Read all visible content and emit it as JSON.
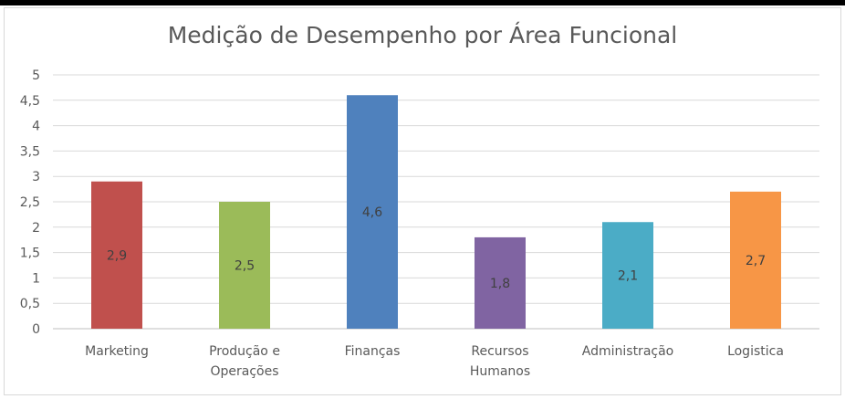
{
  "chart_data": {
    "type": "bar",
    "title": "Medição de Desempenho por Área Funcional",
    "categories": [
      [
        "Marketing"
      ],
      [
        "Produção e",
        "Operações"
      ],
      [
        "Finanças"
      ],
      [
        "Recursos",
        "Humanos"
      ],
      [
        "Administração"
      ],
      [
        "Logistica"
      ]
    ],
    "values": [
      2.9,
      2.5,
      4.6,
      1.8,
      2.1,
      2.7
    ],
    "data_labels": [
      "2,9",
      "2,5",
      "4,6",
      "1,8",
      "2,1",
      "2,7"
    ],
    "colors": [
      "#c0504d",
      "#9bbb59",
      "#4f81bd",
      "#8064a2",
      "#4bacc6",
      "#f79646"
    ],
    "y_ticks": [
      0,
      0.5,
      1,
      1.5,
      2,
      2.5,
      3,
      3.5,
      4,
      4.5,
      5
    ],
    "y_tick_labels": [
      "0",
      "0,5",
      "1",
      "1,5",
      "2",
      "2,5",
      "3",
      "3,5",
      "4",
      "4,5",
      "5"
    ],
    "ylim": [
      0,
      5
    ],
    "xlabel": "",
    "ylabel": "",
    "grid": true,
    "legend": "none"
  }
}
